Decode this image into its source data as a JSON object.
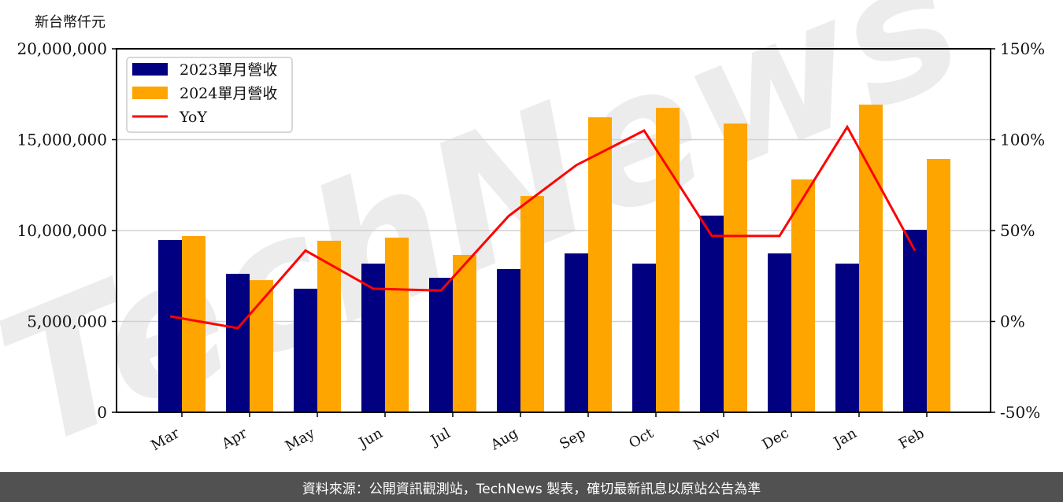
{
  "chart_data": {
    "type": "bar",
    "title": "",
    "ylabel": "新台幣仟元",
    "y2label": "",
    "xlabel": "",
    "categories": [
      "Mar",
      "Apr",
      "May",
      "Jun",
      "Jul",
      "Aug",
      "Sep",
      "Oct",
      "Nov",
      "Dec",
      "Jan",
      "Feb"
    ],
    "series": [
      {
        "name": "2023單月營收",
        "type": "bar",
        "axis": "left",
        "color": "#000080",
        "values": [
          9480000,
          7620000,
          6800000,
          8180000,
          7400000,
          7880000,
          8740000,
          8180000,
          10820000,
          8740000,
          8180000,
          10040000
        ]
      },
      {
        "name": "2024單月營收",
        "type": "bar",
        "axis": "left",
        "color": "#FFA500",
        "values": [
          9700000,
          7270000,
          9440000,
          9610000,
          8660000,
          11900000,
          16230000,
          16750000,
          15890000,
          12810000,
          16930000,
          13940000
        ]
      },
      {
        "name": "YoY",
        "type": "line",
        "axis": "right",
        "color": "#FF0000",
        "values": [
          2.8,
          -3.7,
          39,
          18,
          17,
          58,
          86,
          105,
          47,
          47,
          107,
          39
        ]
      }
    ],
    "ylim": [
      0,
      20000000
    ],
    "y2lim": [
      -50,
      150
    ],
    "yticks": [
      "0",
      "5,000,000",
      "10,000,000",
      "15,000,000",
      "20,000,000"
    ],
    "y2ticks": [
      "-50%",
      "0%",
      "50%",
      "100%",
      "150%"
    ],
    "grid": true,
    "legend_position": "upper left",
    "watermark": "TechNews"
  },
  "footer": {
    "source_text": "資料來源：公開資訊觀測站，TechNews 製表，確切最新訊息以原站公告為準"
  }
}
